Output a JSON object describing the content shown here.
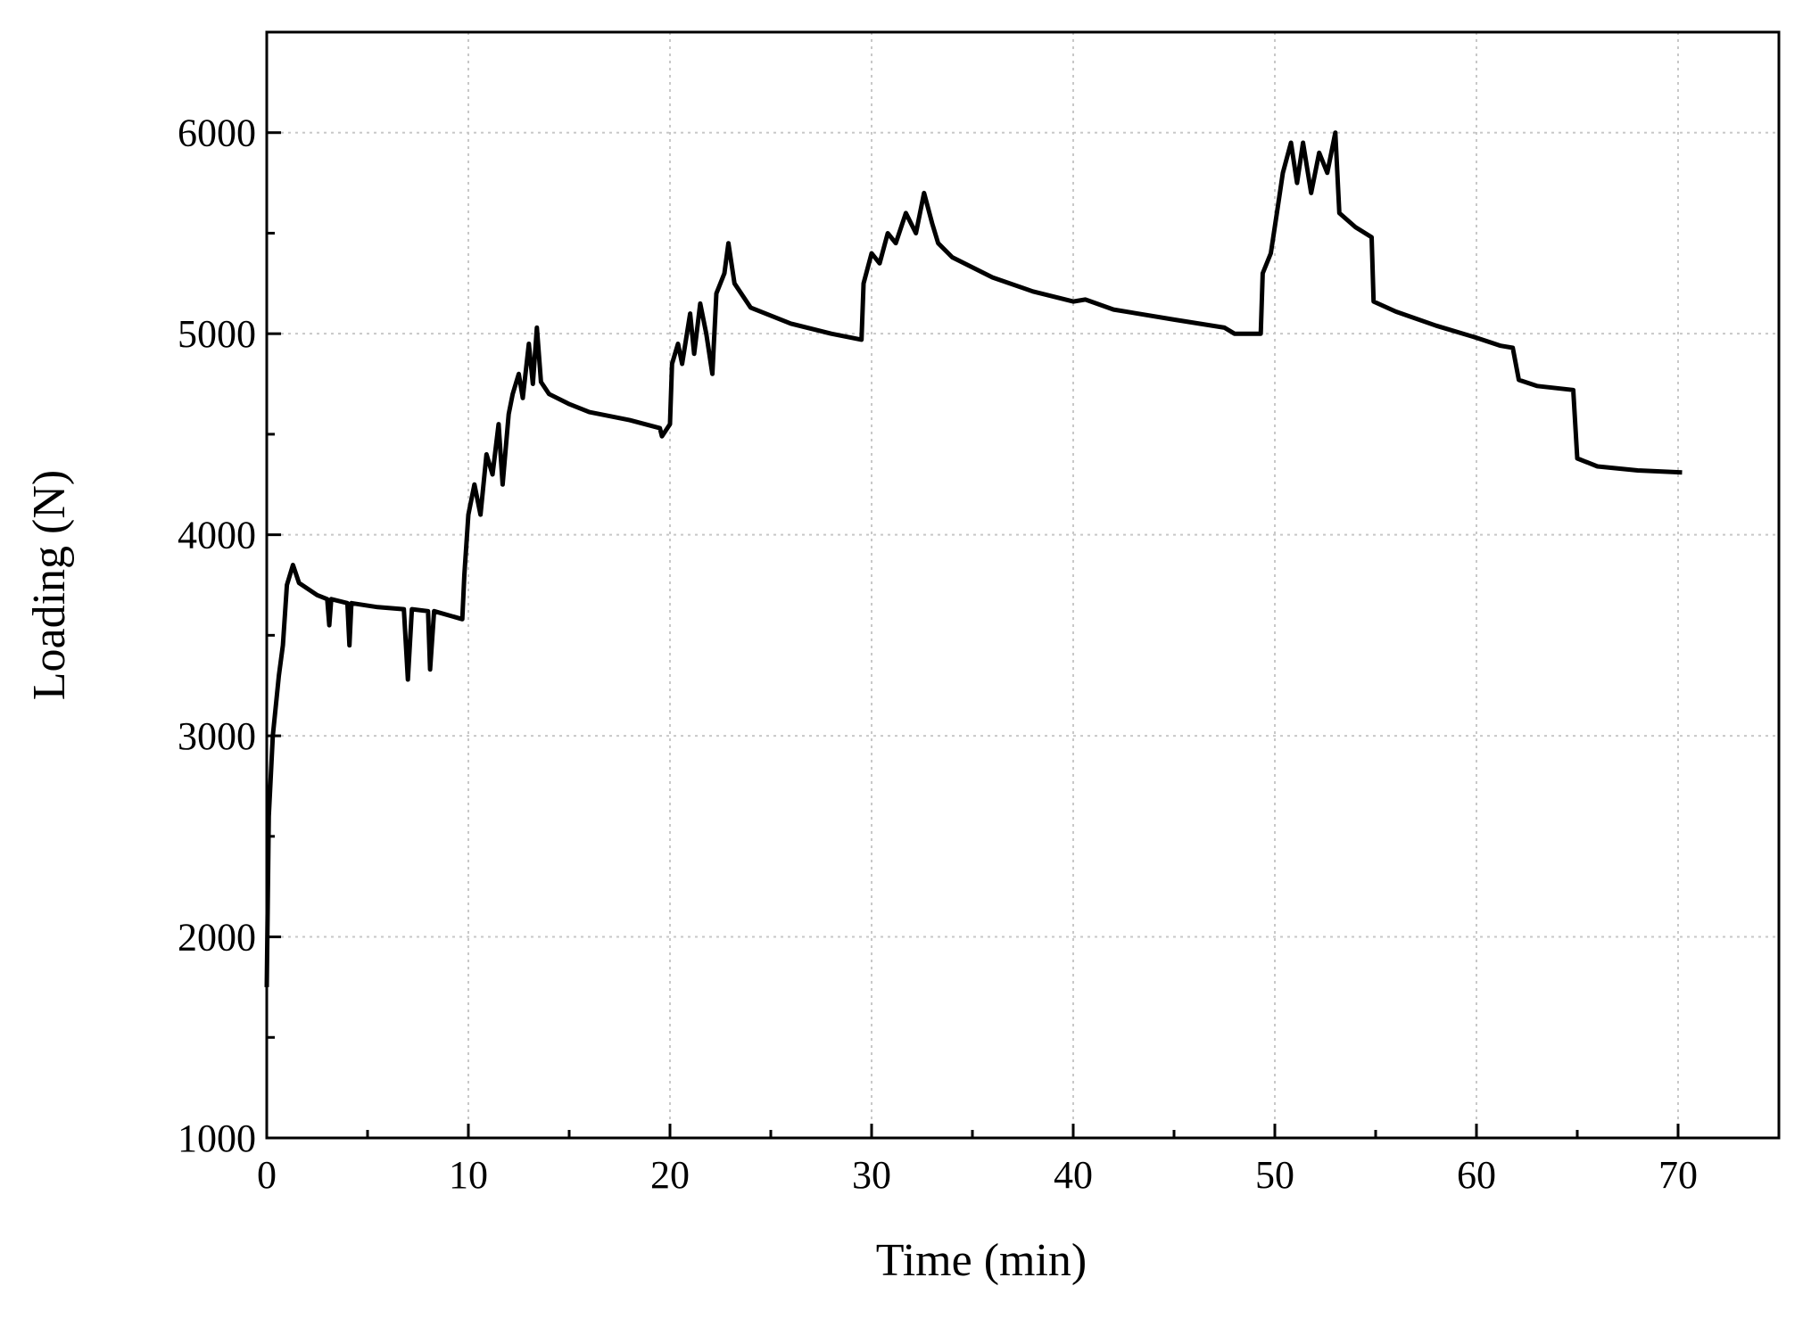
{
  "chart_data": {
    "type": "line",
    "x_label": "Time (min)",
    "y_label": "Loading (N)",
    "xlim": [
      0,
      75
    ],
    "ylim": [
      1000,
      6500
    ],
    "xticks": [
      0,
      10,
      20,
      30,
      40,
      50,
      60,
      70
    ],
    "yticks": [
      1000,
      2000,
      3000,
      4000,
      5000,
      6000
    ],
    "xminorticks": [
      5,
      15,
      25,
      35,
      45,
      55,
      65,
      75
    ],
    "yminorticks": [
      1500,
      2500,
      3500,
      4500,
      5500
    ],
    "grid": true,
    "series": [
      {
        "color": "#000000",
        "x": [
          0,
          0.1,
          0.3,
          0.6,
          0.8,
          1.0,
          1.3,
          1.6,
          2.5,
          3.0,
          3.1,
          3.2,
          4.0,
          4.1,
          4.2,
          5.5,
          6.8,
          7.0,
          7.2,
          8.0,
          8.1,
          8.3,
          9.7,
          9.8,
          10.0,
          10.3,
          10.6,
          10.9,
          11.2,
          11.5,
          11.7,
          12.0,
          12.2,
          12.5,
          12.7,
          13.0,
          13.2,
          13.4,
          13.6,
          14.0,
          15.0,
          16.0,
          18.0,
          19.5,
          19.6,
          20.0,
          20.1,
          20.4,
          20.6,
          21.0,
          21.2,
          21.5,
          21.8,
          22.1,
          22.3,
          22.7,
          22.9,
          23.2,
          24,
          26,
          28,
          29.5,
          29.6,
          30,
          30.4,
          30.8,
          31.2,
          31.7,
          32.2,
          32.6,
          33.0,
          33.3,
          34,
          36,
          38,
          40,
          40.6,
          42,
          45,
          47.5,
          48,
          49.3,
          49.4,
          49.8,
          50.1,
          50.4,
          50.8,
          51.1,
          51.4,
          51.8,
          52.2,
          52.6,
          53.0,
          53.2,
          54,
          54.8,
          54.9,
          56,
          58,
          60,
          61.2,
          61.8,
          62.1,
          63,
          64.8,
          65,
          66,
          68,
          70.2
        ],
        "values": [
          1750,
          2600,
          3000,
          3300,
          3450,
          3750,
          3850,
          3760,
          3700,
          3680,
          3550,
          3680,
          3660,
          3450,
          3660,
          3640,
          3630,
          3280,
          3630,
          3620,
          3330,
          3620,
          3580,
          3800,
          4100,
          4250,
          4100,
          4400,
          4300,
          4550,
          4250,
          4600,
          4700,
          4800,
          4680,
          4950,
          4750,
          5030,
          4760,
          4700,
          4650,
          4610,
          4570,
          4530,
          4490,
          4550,
          4850,
          4950,
          4850,
          5100,
          4900,
          5150,
          5000,
          4800,
          5200,
          5300,
          5450,
          5250,
          5130,
          5050,
          5000,
          4970,
          5250,
          5400,
          5350,
          5500,
          5450,
          5600,
          5500,
          5700,
          5550,
          5450,
          5380,
          5280,
          5210,
          5160,
          5170,
          5120,
          5070,
          5030,
          5000,
          5000,
          5300,
          5400,
          5600,
          5800,
          5950,
          5750,
          5950,
          5700,
          5900,
          5800,
          6000,
          5600,
          5530,
          5480,
          5160,
          5110,
          5040,
          4980,
          4940,
          4930,
          4770,
          4740,
          4720,
          4380,
          4340,
          4320,
          4310
        ]
      }
    ]
  }
}
